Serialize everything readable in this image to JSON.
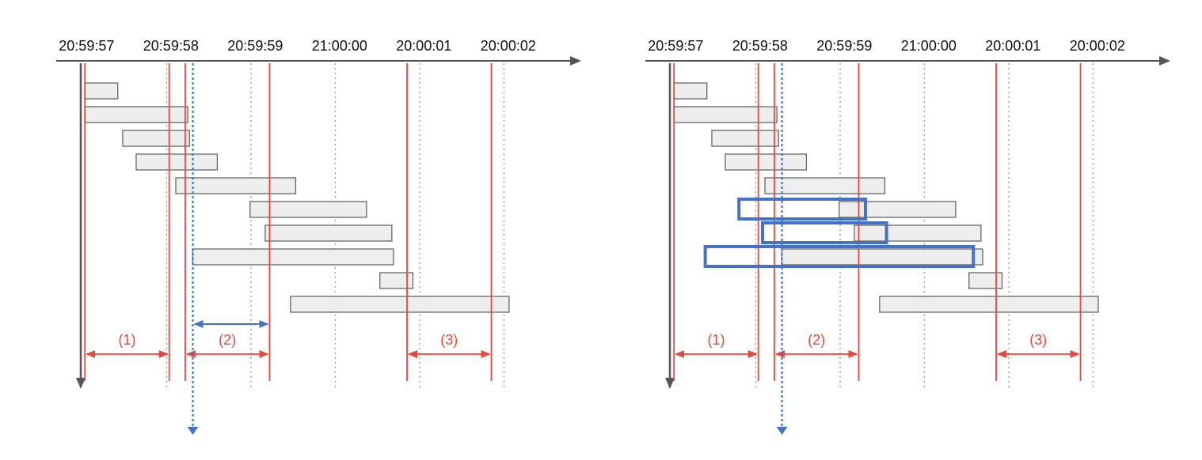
{
  "colors": {
    "axis": "#555555",
    "grid": "#999999",
    "window": "#e8473b",
    "bar_fill": "#eeeeee",
    "bar_stroke": "#666666",
    "highlight": "#4472c4"
  },
  "panels": [
    {
      "ticks": [
        "20:59:57",
        "20:59:58",
        "20:59:59",
        "21:00:00",
        "20:00:01",
        "20:00:02"
      ],
      "window_labels": [
        "(1)",
        "(2)",
        "(3)"
      ],
      "bars": [
        {
          "start": 0,
          "end": 0.42
        },
        {
          "start": 0,
          "end": 1.25
        },
        {
          "start": 0.45,
          "end": 1.27
        },
        {
          "start": 0.61,
          "end": 1.6
        },
        {
          "start": 1.08,
          "end": 2.53
        },
        {
          "start": 1.96,
          "end": 3.37
        },
        {
          "start": 2.14,
          "end": 3.67
        },
        {
          "start": 1.28,
          "end": 3.69
        },
        {
          "start": 3.5,
          "end": 3.92
        },
        {
          "start": 2.44,
          "end": 5.06
        }
      ],
      "windows": [
        0.03,
        1.03,
        1.22,
        2.22,
        3.85,
        4.85
      ],
      "highlights": []
    },
    {
      "ticks": [
        "20:59:57",
        "20:59:58",
        "20:59:59",
        "21:00:00",
        "20:00:01",
        "20:00:02"
      ],
      "window_labels": [
        "(1)",
        "(2)",
        "(3)"
      ],
      "bars": [
        {
          "start": 0,
          "end": 0.42
        },
        {
          "start": 0,
          "end": 1.25
        },
        {
          "start": 0.45,
          "end": 1.27
        },
        {
          "start": 0.61,
          "end": 1.6
        },
        {
          "start": 1.08,
          "end": 2.53
        },
        {
          "start": 1.96,
          "end": 3.37
        },
        {
          "start": 2.14,
          "end": 3.67
        },
        {
          "start": 1.28,
          "end": 3.69
        },
        {
          "start": 3.5,
          "end": 3.92
        },
        {
          "start": 2.44,
          "end": 5.06
        }
      ],
      "windows": [
        0.03,
        1.03,
        1.22,
        2.22,
        3.85,
        4.85
      ],
      "highlights": [
        {
          "row": 5,
          "start": 0.8,
          "end": 2.3
        },
        {
          "row": 6,
          "start": 1.08,
          "end": 2.55
        },
        {
          "row": 7,
          "start": 0.4,
          "end": 3.58
        }
      ]
    }
  ]
}
